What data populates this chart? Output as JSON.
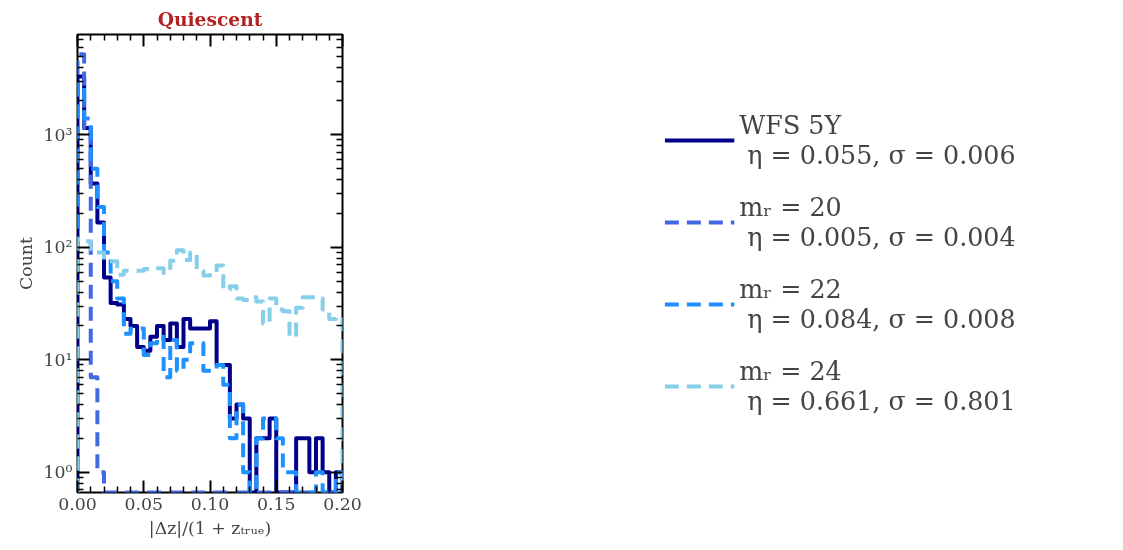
{
  "chart_data": {
    "type": "histogram",
    "title": "Quiescent",
    "xlabel": "|Δz|/(1 + zₜᵣᵤₑ)",
    "ylabel": "Count",
    "bins": [
      0.0,
      0.005,
      0.01,
      0.015,
      0.02,
      0.025,
      0.03,
      0.035,
      0.04,
      0.045,
      0.05,
      0.055,
      0.06,
      0.065,
      0.07,
      0.075,
      0.08,
      0.085,
      0.09,
      0.095,
      0.1,
      0.105,
      0.11,
      0.115,
      0.12,
      0.125,
      0.13,
      0.135,
      0.14,
      0.145,
      0.15,
      0.155,
      0.16,
      0.165,
      0.17,
      0.175,
      0.18,
      0.185,
      0.19,
      0.195,
      0.2
    ],
    "series": [
      {
        "name": "WFS 5Y\n η = 0.055, σ = 0.006",
        "color": "#00008b",
        "line_style": "solid",
        "values": [
          3300,
          1150,
          370,
          166,
          54,
          32,
          31,
          23,
          20,
          13,
          12,
          16,
          20,
          15,
          21,
          13,
          23,
          19,
          19,
          19,
          22,
          9,
          9,
          3,
          4,
          3,
          null,
          2,
          2,
          3,
          null,
          null,
          null,
          2,
          2,
          1,
          2,
          1,
          null,
          1
        ]
      },
      {
        "name": "mᵣ = 20\n η = 0.005, σ = 0.004",
        "color": "#4169e1",
        "line_style": "dashed",
        "values": [
          5200,
          1100,
          7,
          1,
          null,
          null,
          null,
          null,
          null,
          null,
          null,
          null,
          null,
          null,
          null,
          null,
          null,
          null,
          null,
          null,
          null,
          null,
          null,
          null,
          null,
          null,
          null,
          null,
          null,
          null,
          null,
          null,
          null,
          null,
          null,
          null,
          null,
          null,
          null,
          null
        ]
      },
      {
        "name": "mᵣ = 22\n η = 0.084, σ = 0.008",
        "color": "#1e90ff",
        "line_style": "dashed",
        "values": [
          2800,
          1400,
          500,
          228,
          90,
          50,
          35,
          17,
          19,
          19,
          11,
          14,
          16,
          7,
          15,
          8,
          10,
          14,
          14,
          8,
          8,
          9,
          6,
          2,
          4,
          1,
          null,
          2,
          3,
          3,
          2,
          1,
          1,
          null,
          null,
          null,
          1,
          null,
          null,
          1
        ]
      },
      {
        "name": "mᵣ = 24\n η = 0.661, σ = 0.801",
        "color": "#87ceeb",
        "line_style": "dashed",
        "values": [
          118,
          113,
          90,
          90,
          75,
          75,
          57,
          62,
          62,
          62,
          64,
          65,
          65,
          59,
          76,
          94,
          77,
          90,
          62,
          56,
          60,
          69,
          42,
          45,
          35,
          34,
          36,
          33,
          21,
          35,
          28,
          27,
          16,
          29,
          36,
          36,
          35,
          28,
          23,
          24
        ]
      }
    ],
    "log": "y",
    "xlim": [
      0.0,
      0.2
    ],
    "ylim": [
      0.66,
      7800
    ],
    "xticks": [
      {
        "value": 0.0,
        "label": "0.00"
      },
      0.05,
      {
        "value": 0.1,
        "label": "0.10"
      },
      0.15,
      {
        "value": 0.2,
        "label": "0.20"
      }
    ],
    "yticks": [
      {
        "value": 1,
        "label": "10⁰"
      },
      {
        "value": 10,
        "label": "10¹"
      },
      {
        "value": 100,
        "label": "10²"
      },
      {
        "value": 1000,
        "label": "10³"
      }
    ],
    "grid": false,
    "legend": "right"
  }
}
